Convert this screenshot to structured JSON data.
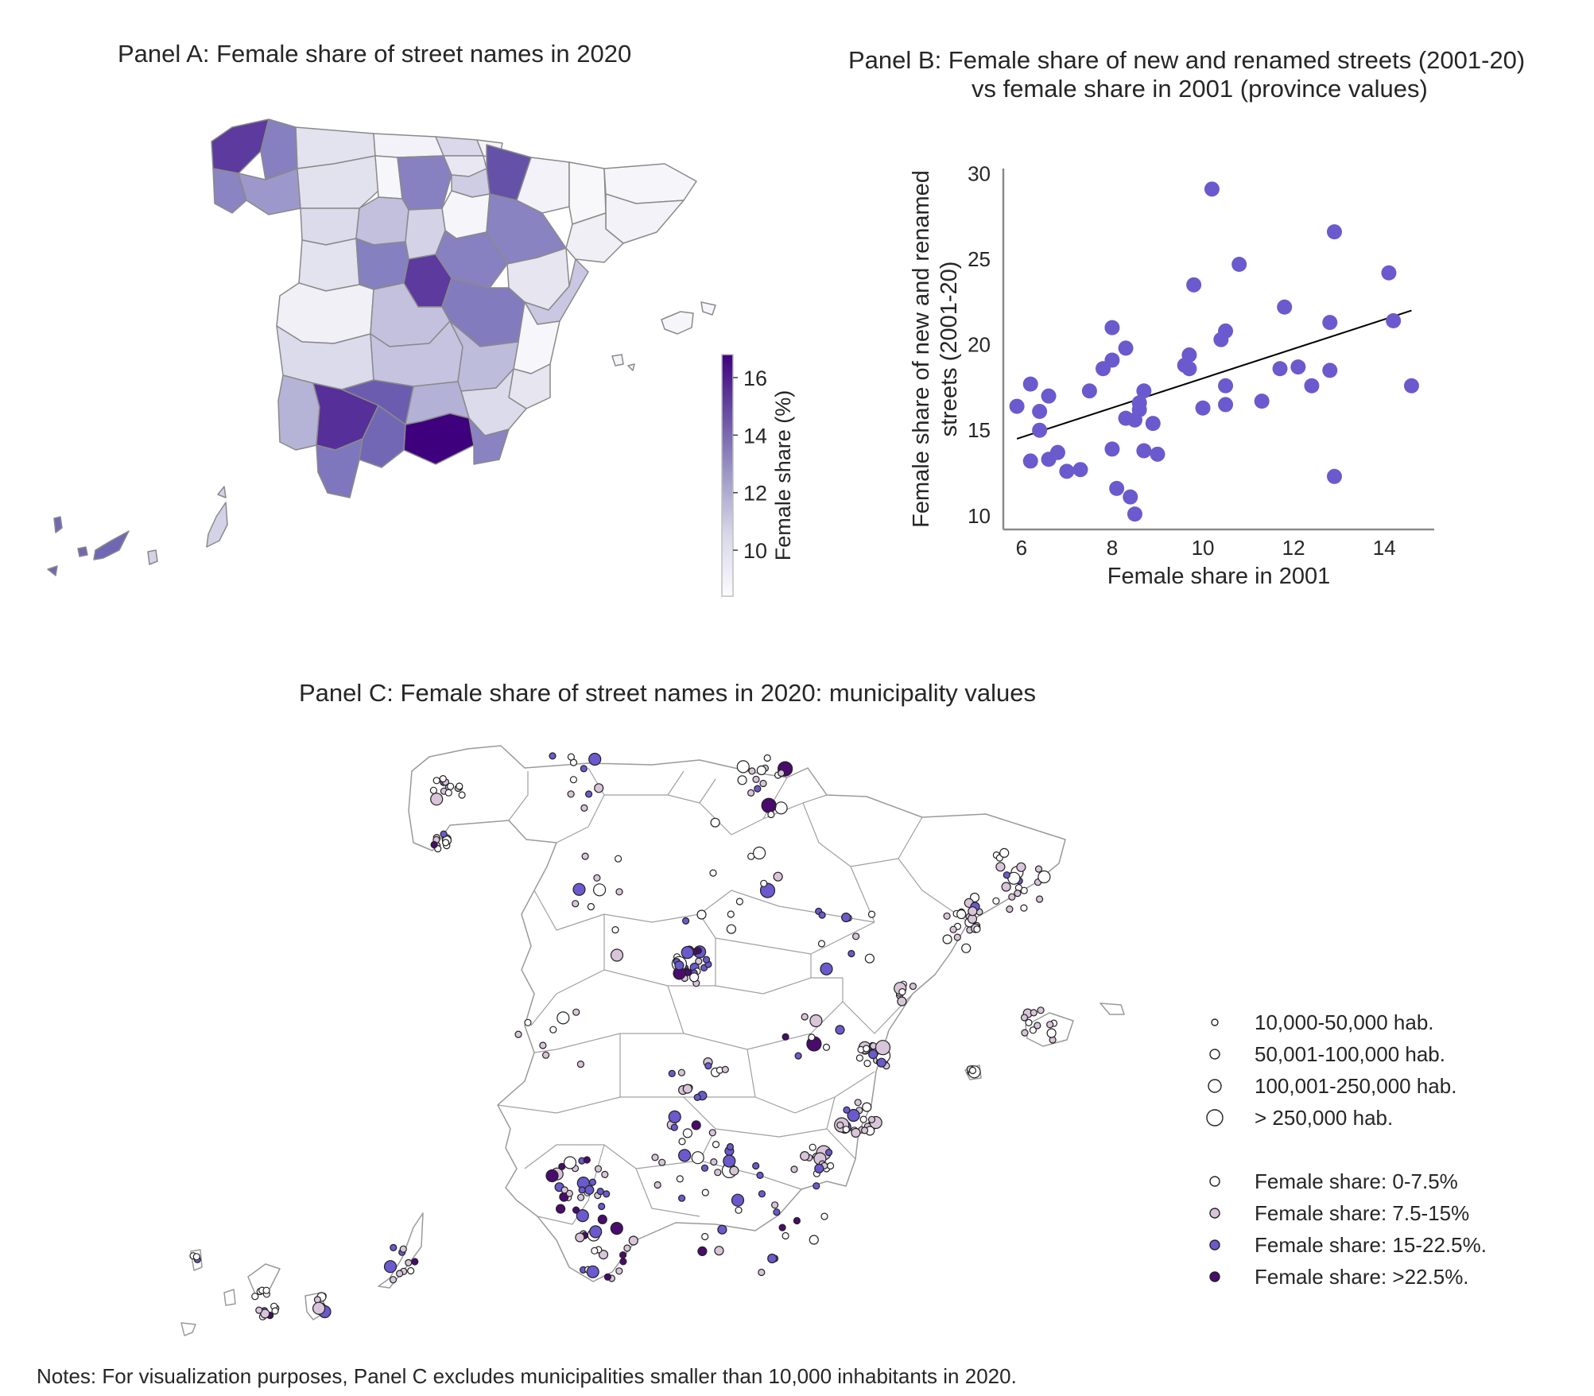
{
  "panel_a": {
    "title": "Panel A: Female share of street names in 2020",
    "colorbar": {
      "label": "Female share (%)",
      "ticks": [
        "10",
        "12",
        "14",
        "16"
      ],
      "min": 8.4,
      "max": 16.8,
      "color_low": "#fcfbfd",
      "color_high": "#3f007d"
    }
  },
  "panel_b": {
    "title_line1": "Panel B: Female share of new and renamed streets (2001-20)",
    "title_line2": "vs female share in 2001 (province values)",
    "point_color": "#6a5acd"
  },
  "panel_c": {
    "title": "Panel C: Female share of street names in 2020: municipality values",
    "legend_size": [
      "10,000-50,000 hab.",
      "50,001-100,000 hab.",
      "100,001-250,000 hab.",
      "> 250,000 hab."
    ],
    "legend_color": [
      {
        "label": "Female share: 0-7.5%",
        "color": "#ffffff"
      },
      {
        "label": "Female share: 7.5-15%",
        "color": "#d8c5d9"
      },
      {
        "label": "Female share: 15-22.5%.",
        "color": "#6a5acd"
      },
      {
        "label": "Female share: >22.5%.",
        "color": "#4a0b6e"
      }
    ]
  },
  "notes": "Notes: For visualization purposes, Panel C excludes municipalities smaller than 10,000 inhabitants in 2020.",
  "chart_data": {
    "type": "scatter",
    "title": "",
    "xlabel": "Female share in 2001",
    "ylabel_line1": "Female share of new and renamed",
    "ylabel_line2": "streets (2001-20)",
    "xlim": [
      5.6,
      15.1
    ],
    "ylim": [
      9.2,
      30.3
    ],
    "xticks": [
      6,
      8,
      10,
      12,
      14
    ],
    "yticks": [
      10,
      15,
      20,
      25,
      30
    ],
    "grid": false,
    "points": [
      [
        5.9,
        16.4
      ],
      [
        6.2,
        17.7
      ],
      [
        6.2,
        13.2
      ],
      [
        6.4,
        16.1
      ],
      [
        6.4,
        15.0
      ],
      [
        6.6,
        17.0
      ],
      [
        6.6,
        13.3
      ],
      [
        6.8,
        13.7
      ],
      [
        7.0,
        12.6
      ],
      [
        7.3,
        12.7
      ],
      [
        7.5,
        17.3
      ],
      [
        7.8,
        18.6
      ],
      [
        8.0,
        21.0
      ],
      [
        8.0,
        19.1
      ],
      [
        8.0,
        13.9
      ],
      [
        8.1,
        11.6
      ],
      [
        8.3,
        19.8
      ],
      [
        8.3,
        15.7
      ],
      [
        8.4,
        11.1
      ],
      [
        8.5,
        15.6
      ],
      [
        8.5,
        10.1
      ],
      [
        8.6,
        16.6
      ],
      [
        8.6,
        16.2
      ],
      [
        8.7,
        17.3
      ],
      [
        8.7,
        13.8
      ],
      [
        8.9,
        15.4
      ],
      [
        9.0,
        13.6
      ],
      [
        9.6,
        18.8
      ],
      [
        9.7,
        19.4
      ],
      [
        9.7,
        18.6
      ],
      [
        9.8,
        23.5
      ],
      [
        10.0,
        16.3
      ],
      [
        10.2,
        29.1
      ],
      [
        10.4,
        20.3
      ],
      [
        10.5,
        20.8
      ],
      [
        10.5,
        17.6
      ],
      [
        10.5,
        16.5
      ],
      [
        10.8,
        24.7
      ],
      [
        11.3,
        16.7
      ],
      [
        11.7,
        18.6
      ],
      [
        11.8,
        22.2
      ],
      [
        12.1,
        18.7
      ],
      [
        12.4,
        17.6
      ],
      [
        12.8,
        21.3
      ],
      [
        12.8,
        18.5
      ],
      [
        12.9,
        26.6
      ],
      [
        12.9,
        12.3
      ],
      [
        14.1,
        24.2
      ],
      [
        14.2,
        21.4
      ],
      [
        14.6,
        17.6
      ]
    ],
    "regression_line": {
      "x": [
        5.9,
        14.6
      ],
      "y": [
        14.5,
        22.0
      ]
    }
  }
}
